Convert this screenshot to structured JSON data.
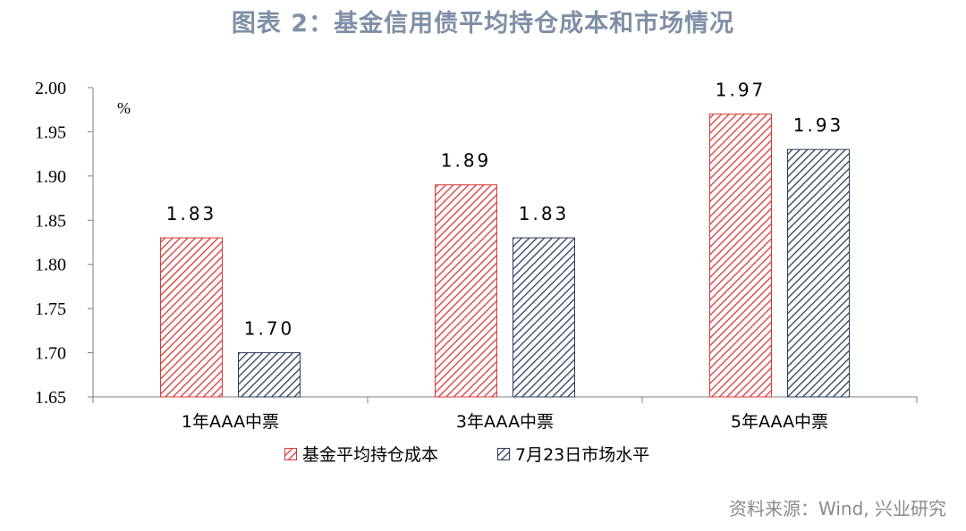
{
  "title": "图表 2：基金信用债平均持仓成本和市场情况",
  "source": "资料来源：Wind, 兴业研究",
  "colors": {
    "series1": "#d93838",
    "series2": "#2e3c5c",
    "axis": "#7f7f7f"
  },
  "chart_data": {
    "type": "bar",
    "unit_label": "%",
    "categories": [
      "1年AAA中票",
      "3年AAA中票",
      "5年AAA中票"
    ],
    "series": [
      {
        "name": "基金平均持仓成本",
        "values": [
          1.83,
          1.89,
          1.97
        ],
        "labels": [
          "1.83",
          "1.89",
          "1.97"
        ],
        "pattern": "red-diagonal-hatch"
      },
      {
        "name": "7月23日市场水平",
        "values": [
          1.7,
          1.83,
          1.93
        ],
        "labels": [
          "1.70",
          "1.83",
          "1.93"
        ],
        "pattern": "navy-diagonal-hatch"
      }
    ],
    "ylim": [
      1.65,
      2.0
    ],
    "yticks": [
      "1.65",
      "1.70",
      "1.75",
      "1.80",
      "1.85",
      "1.90",
      "1.95",
      "2.00"
    ],
    "legend_position": "bottom",
    "grid": false
  }
}
